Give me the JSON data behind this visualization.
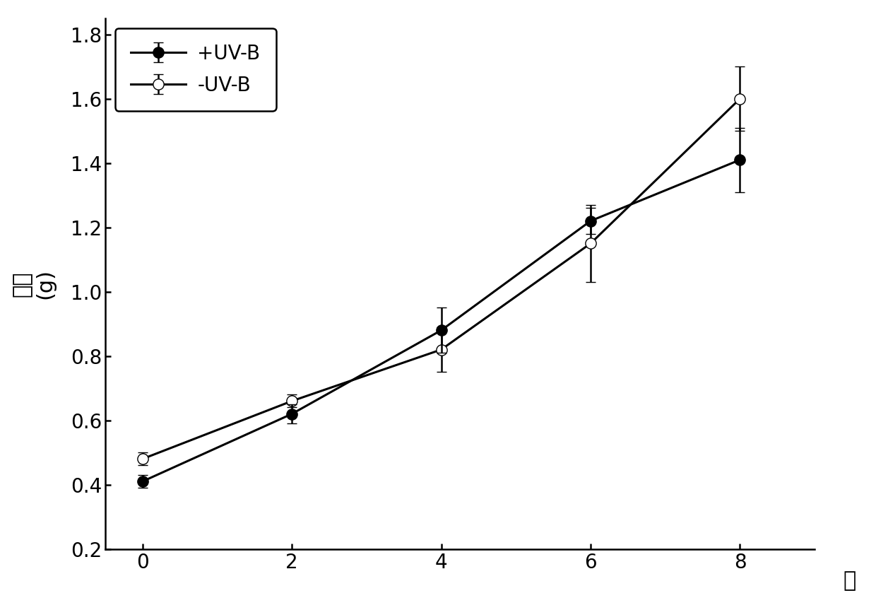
{
  "x": [
    0,
    2,
    4,
    6,
    8
  ],
  "uvb_plus_y": [
    0.41,
    0.62,
    0.88,
    1.22,
    1.41
  ],
  "uvb_plus_yerr": [
    0.02,
    0.03,
    0.07,
    0.04,
    0.1
  ],
  "uvb_minus_y": [
    0.48,
    0.66,
    0.82,
    1.15,
    1.6
  ],
  "uvb_minus_yerr": [
    0.02,
    0.02,
    0.07,
    0.12,
    0.1
  ],
  "xlabel": "天",
  "ylabel_line1": "鲜重",
  "ylabel_line2": "(g)",
  "ylim": [
    0.2,
    1.85
  ],
  "yticks": [
    0.2,
    0.4,
    0.6,
    0.8,
    1.0,
    1.2,
    1.4,
    1.6,
    1.8
  ],
  "xticks": [
    0,
    2,
    4,
    6,
    8
  ],
  "legend_uvb_plus": "+UV-B",
  "legend_uvb_minus": "-UV-B",
  "line_color": "#000000",
  "marker_size": 11,
  "linewidth": 2.2,
  "capsize": 5,
  "elinewidth": 1.8,
  "background_color": "#ffffff",
  "ylabel_fontsize": 22,
  "xlabel_fontsize": 22,
  "tick_fontsize": 20,
  "legend_fontsize": 20
}
